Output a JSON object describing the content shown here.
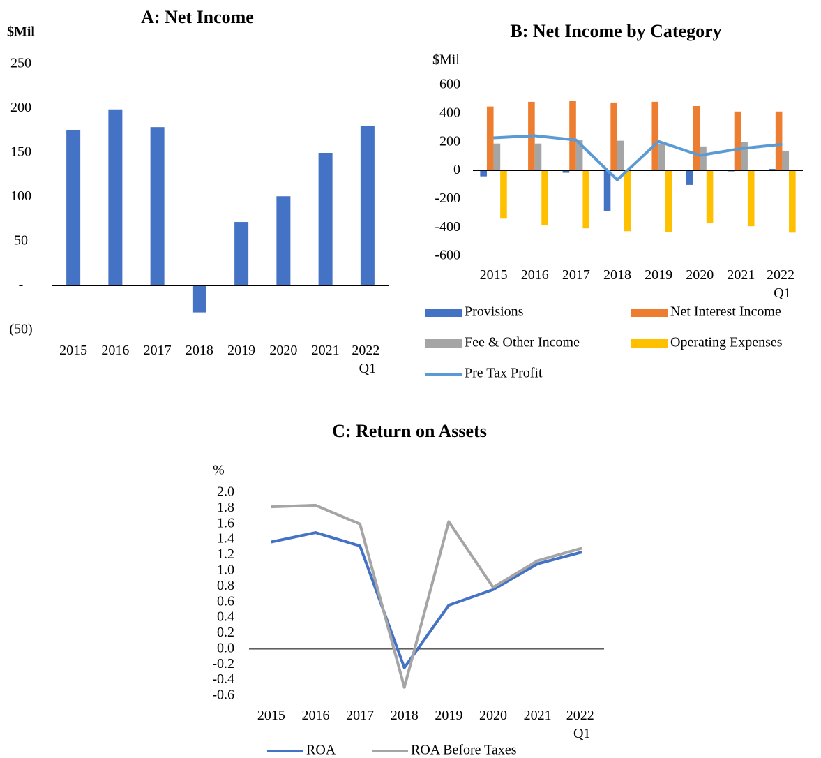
{
  "chart_data": [
    {
      "type": "bar",
      "title": "A: Net Income",
      "ylabel": "$Mil",
      "categories": [
        "2015",
        "2016",
        "2017",
        "2018",
        "2019",
        "2020",
        "2021",
        "2022 Q1"
      ],
      "series": [
        {
          "name": "Net Income",
          "color": "#4472c4",
          "values": [
            176,
            199,
            179,
            -30,
            72,
            101,
            150,
            180
          ]
        }
      ],
      "ylim": [
        -50,
        250
      ],
      "yticks": [
        {
          "value": -50,
          "label": "(50)"
        },
        {
          "value": 0,
          "label": "-"
        },
        50,
        100,
        150,
        200,
        250
      ],
      "legend": false
    },
    {
      "type": "bar",
      "title": "B: Net Income by Category",
      "ylabel": "$Mil",
      "categories": [
        "2015",
        "2016",
        "2017",
        "2018",
        "2019",
        "2020",
        "2021",
        "2022 Q1"
      ],
      "series": [
        {
          "name": "Provisions",
          "color": "#4472c4",
          "values": [
            -40,
            0,
            -15,
            -285,
            0,
            -100,
            -5,
            12
          ]
        },
        {
          "name": "Net Interest Income",
          "color": "#ed7d31",
          "values": [
            450,
            483,
            488,
            478,
            483,
            453,
            415,
            415
          ]
        },
        {
          "name": "Fee & Other Income",
          "color": "#a5a5a5",
          "values": [
            190,
            190,
            215,
            210,
            190,
            170,
            200,
            140
          ]
        },
        {
          "name": "Operating Expenses",
          "color": "#ffc000",
          "values": [
            -337,
            -385,
            -405,
            -425,
            -430,
            -370,
            -390,
            -435
          ]
        },
        {
          "name": "Pre Tax Profit",
          "color": "#5b9bd5",
          "type": "line",
          "values": [
            230,
            245,
            215,
            -65,
            205,
            107,
            155,
            185
          ]
        }
      ],
      "ylim": [
        -600,
        600
      ],
      "yticks": [
        -600,
        -400,
        -200,
        0,
        200,
        400,
        600
      ],
      "legend": "bottom"
    },
    {
      "type": "line",
      "title": "C: Return on Assets",
      "ylabel": "%",
      "categories": [
        "2015",
        "2016",
        "2017",
        "2018",
        "2019",
        "2020",
        "2021",
        "2022 Q1"
      ],
      "series": [
        {
          "name": "ROA",
          "color": "#4472c4",
          "values": [
            1.37,
            1.49,
            1.32,
            -0.24,
            0.56,
            0.76,
            1.09,
            1.24
          ]
        },
        {
          "name": "ROA Before Taxes",
          "color": "#a5a5a5",
          "values": [
            1.82,
            1.84,
            1.6,
            -0.49,
            1.63,
            0.79,
            1.13,
            1.29
          ]
        }
      ],
      "ylim": [
        -0.6,
        2.0
      ],
      "yticks": [
        -0.6,
        -0.4,
        -0.2,
        {
          "value": 0,
          "label": "0.0"
        },
        0.2,
        0.4,
        0.6,
        0.8,
        {
          "value": 1,
          "label": "1.0"
        },
        1.2,
        1.4,
        1.6,
        1.8,
        {
          "value": 2,
          "label": "2.0"
        }
      ],
      "legend": "bottom"
    }
  ]
}
